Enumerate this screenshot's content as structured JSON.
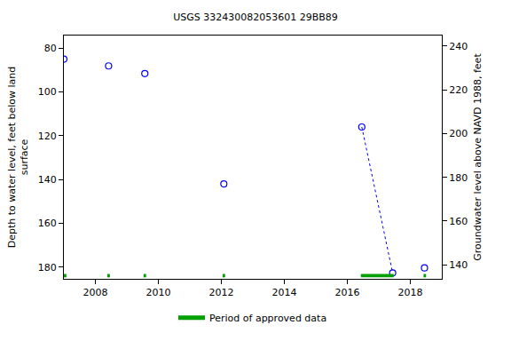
{
  "chart_data": {
    "type": "scatter",
    "title": "USGS 332430082053601 29BB89",
    "y_label": "Depth to water level, feet below land\nsurface",
    "y2_label": "Groundwater level above NAVD 1988, feet",
    "xlim": [
      2007.0,
      2019.0
    ],
    "xticks": [
      2008,
      2010,
      2012,
      2014,
      2016,
      2018
    ],
    "ylim": [
      185.4,
      74.2
    ],
    "yticks": [
      80,
      100,
      120,
      140,
      160,
      180
    ],
    "y2lim": [
      133.6,
      244.8
    ],
    "y2ticks": [
      140,
      160,
      180,
      200,
      220,
      240
    ],
    "grid": false,
    "legend": "bottom",
    "series": [
      {
        "type": "scatter",
        "marker": "open-circle",
        "color": "#0000ff",
        "x": [
          2007.0,
          2008.42,
          2009.57,
          2012.08,
          2016.46,
          2017.44,
          2018.45
        ],
        "values": [
          85.0,
          88.1,
          91.6,
          142.0,
          116.0,
          182.7,
          180.4
        ]
      },
      {
        "type": "line",
        "line_style": "dotted",
        "color": "#0000ff",
        "x": [
          2016.46,
          2017.44
        ],
        "values": [
          116.0,
          182.7
        ]
      },
      {
        "type": "periods",
        "name": "Period of approved data",
        "color": "#00a000",
        "periods": [
          [
            2007.0,
            2007.08
          ],
          [
            2008.38,
            2008.46
          ],
          [
            2009.53,
            2009.61
          ],
          [
            2012.04,
            2012.12
          ],
          [
            2016.43,
            2017.47
          ],
          [
            2018.42,
            2018.5
          ]
        ]
      }
    ]
  }
}
